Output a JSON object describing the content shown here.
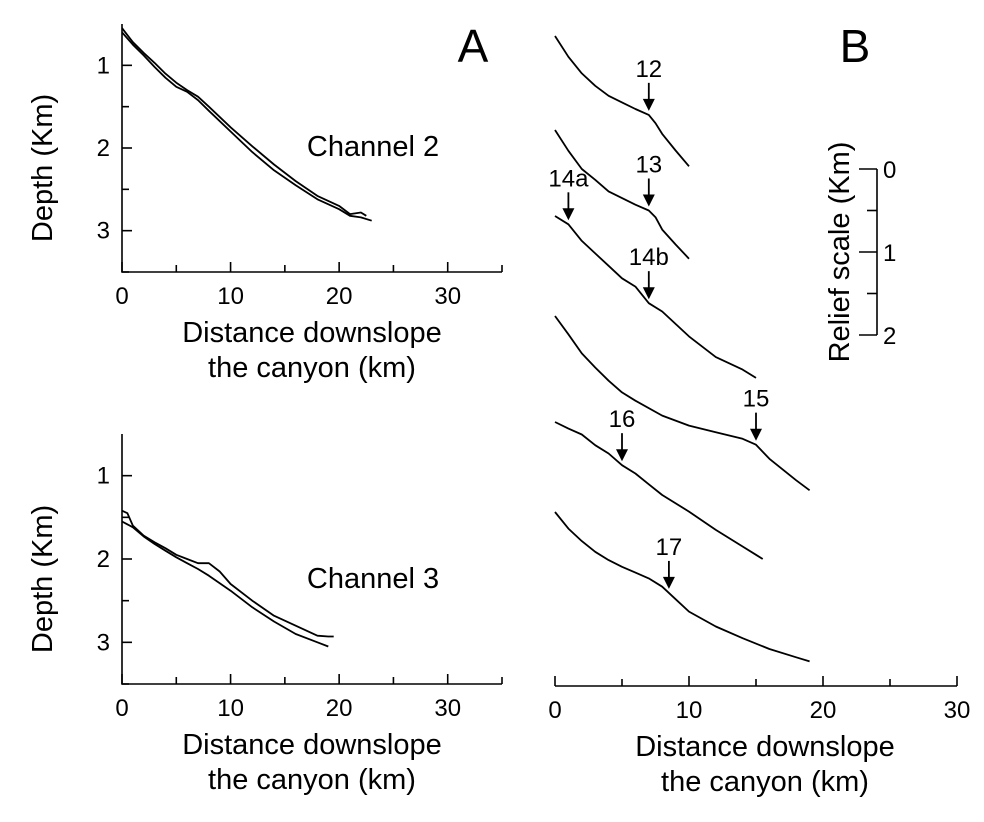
{
  "chart_data": [
    {
      "type": "line",
      "panel": "A",
      "annotation": "Channel 2",
      "xlabel": [
        "Distance downslope",
        "the canyon (km)"
      ],
      "ylabel": "Depth (Km)",
      "xlim": [
        0,
        35
      ],
      "ylim": [
        0.5,
        3.5
      ],
      "y_inverted": true,
      "xticks": [
        "0",
        "10",
        "20",
        "30"
      ],
      "yticks": [
        "1",
        "2",
        "3"
      ],
      "series": [
        {
          "x": [
            0,
            1,
            2,
            3,
            4,
            5,
            6,
            7,
            8,
            10,
            12,
            14,
            16,
            18,
            20,
            21,
            22,
            22.5
          ],
          "y": [
            0.55,
            0.72,
            0.85,
            0.97,
            1.1,
            1.21,
            1.3,
            1.38,
            1.5,
            1.75,
            1.98,
            2.2,
            2.4,
            2.58,
            2.7,
            2.8,
            2.78,
            2.82
          ]
        },
        {
          "x": [
            0,
            1,
            2,
            3,
            4,
            5,
            6,
            7,
            8,
            10,
            12,
            14,
            16,
            18,
            20,
            21,
            22,
            23
          ],
          "y": [
            0.6,
            0.75,
            0.88,
            1.02,
            1.15,
            1.26,
            1.32,
            1.42,
            1.55,
            1.8,
            2.05,
            2.27,
            2.45,
            2.62,
            2.74,
            2.82,
            2.84,
            2.88
          ]
        }
      ]
    },
    {
      "type": "line",
      "panel": "A",
      "annotation": "Channel 3",
      "xlabel": [
        "Distance downslope",
        "the canyon (km)"
      ],
      "ylabel": "Depth (Km)",
      "xlim": [
        0,
        35
      ],
      "ylim": [
        0.5,
        3.5
      ],
      "y_inverted": true,
      "xticks": [
        "0",
        "10",
        "20",
        "30"
      ],
      "yticks": [
        "1",
        "2",
        "3"
      ],
      "series": [
        {
          "x": [
            0,
            0.5,
            1,
            2,
            3,
            4,
            5,
            6,
            7,
            8,
            9,
            10,
            12,
            14,
            16,
            18,
            19,
            19.5
          ],
          "y": [
            1.42,
            1.45,
            1.6,
            1.72,
            1.8,
            1.87,
            1.95,
            2.0,
            2.05,
            2.05,
            2.15,
            2.3,
            2.5,
            2.68,
            2.8,
            2.92,
            2.93,
            2.93
          ]
        },
        {
          "x": [
            0,
            1,
            2,
            3,
            4,
            5,
            6,
            7,
            8,
            10,
            12,
            14,
            16,
            18,
            19
          ],
          "y": [
            1.55,
            1.62,
            1.73,
            1.82,
            1.9,
            1.98,
            2.05,
            2.12,
            2.2,
            2.38,
            2.58,
            2.75,
            2.9,
            3.0,
            3.05
          ]
        }
      ]
    },
    {
      "type": "line",
      "panel": "B",
      "xlabel": [
        "Distance downslope",
        "the canyon (km)"
      ],
      "xlim": [
        0,
        30
      ],
      "xticks": [
        "0",
        "10",
        "20",
        "30"
      ],
      "relief_scale": {
        "label": "Relief scale (Km)",
        "ticks": [
          "0",
          "1",
          "2"
        ]
      },
      "profiles": [
        {
          "x": [
            0,
            1,
            2,
            3,
            4,
            5,
            6,
            7,
            7.5,
            8,
            9,
            10
          ],
          "relief": [
            0,
            0.25,
            0.45,
            0.6,
            0.72,
            0.8,
            0.88,
            0.95,
            1.05,
            1.18,
            1.38,
            1.57
          ],
          "markers": [
            {
              "label": "12",
              "x": 7
            }
          ]
        },
        {
          "x": [
            0,
            1,
            2,
            3,
            4,
            5,
            6,
            7,
            7.5,
            8,
            9,
            10
          ],
          "relief": [
            0,
            0.25,
            0.47,
            0.6,
            0.74,
            0.82,
            0.9,
            0.97,
            1.05,
            1.2,
            1.38,
            1.55
          ],
          "markers": [
            {
              "label": "13",
              "x": 7
            }
          ]
        },
        {
          "x": [
            0,
            1,
            2,
            3,
            4,
            5,
            6,
            7,
            8,
            10,
            12,
            14,
            15
          ],
          "relief": [
            0,
            0.1,
            0.3,
            0.45,
            0.6,
            0.75,
            0.85,
            1.05,
            1.15,
            1.45,
            1.7,
            1.85,
            1.95
          ],
          "markers": [
            {
              "label": "14a",
              "x": 1
            },
            {
              "label": "14b",
              "x": 7
            }
          ]
        },
        {
          "x": [
            0,
            1,
            2,
            3,
            4,
            5,
            6,
            8,
            10,
            12,
            14,
            15,
            16,
            17,
            18,
            19
          ],
          "relief": [
            0,
            0.22,
            0.45,
            0.62,
            0.78,
            0.92,
            1.02,
            1.2,
            1.32,
            1.4,
            1.48,
            1.55,
            1.72,
            1.85,
            1.98,
            2.1
          ],
          "markers": [
            {
              "label": "15",
              "x": 15
            }
          ]
        },
        {
          "x": [
            0,
            1,
            2,
            3,
            4,
            5,
            6,
            7,
            8,
            10,
            12,
            14,
            15,
            15.5
          ],
          "relief": [
            0,
            0.08,
            0.15,
            0.28,
            0.38,
            0.52,
            0.62,
            0.75,
            0.88,
            1.08,
            1.3,
            1.5,
            1.6,
            1.65
          ],
          "markers": [
            {
              "label": "16",
              "x": 5
            }
          ]
        },
        {
          "x": [
            0,
            1,
            2,
            3,
            4,
            5,
            6,
            7,
            8,
            9,
            10,
            12,
            14,
            16,
            18,
            19
          ],
          "relief": [
            0,
            0.2,
            0.35,
            0.48,
            0.58,
            0.66,
            0.73,
            0.8,
            0.9,
            1.05,
            1.2,
            1.38,
            1.52,
            1.65,
            1.75,
            1.8
          ],
          "markers": [
            {
              "label": "17",
              "x": 8.5
            }
          ]
        }
      ]
    }
  ],
  "panel_labels": {
    "a": "A",
    "b": "B"
  }
}
